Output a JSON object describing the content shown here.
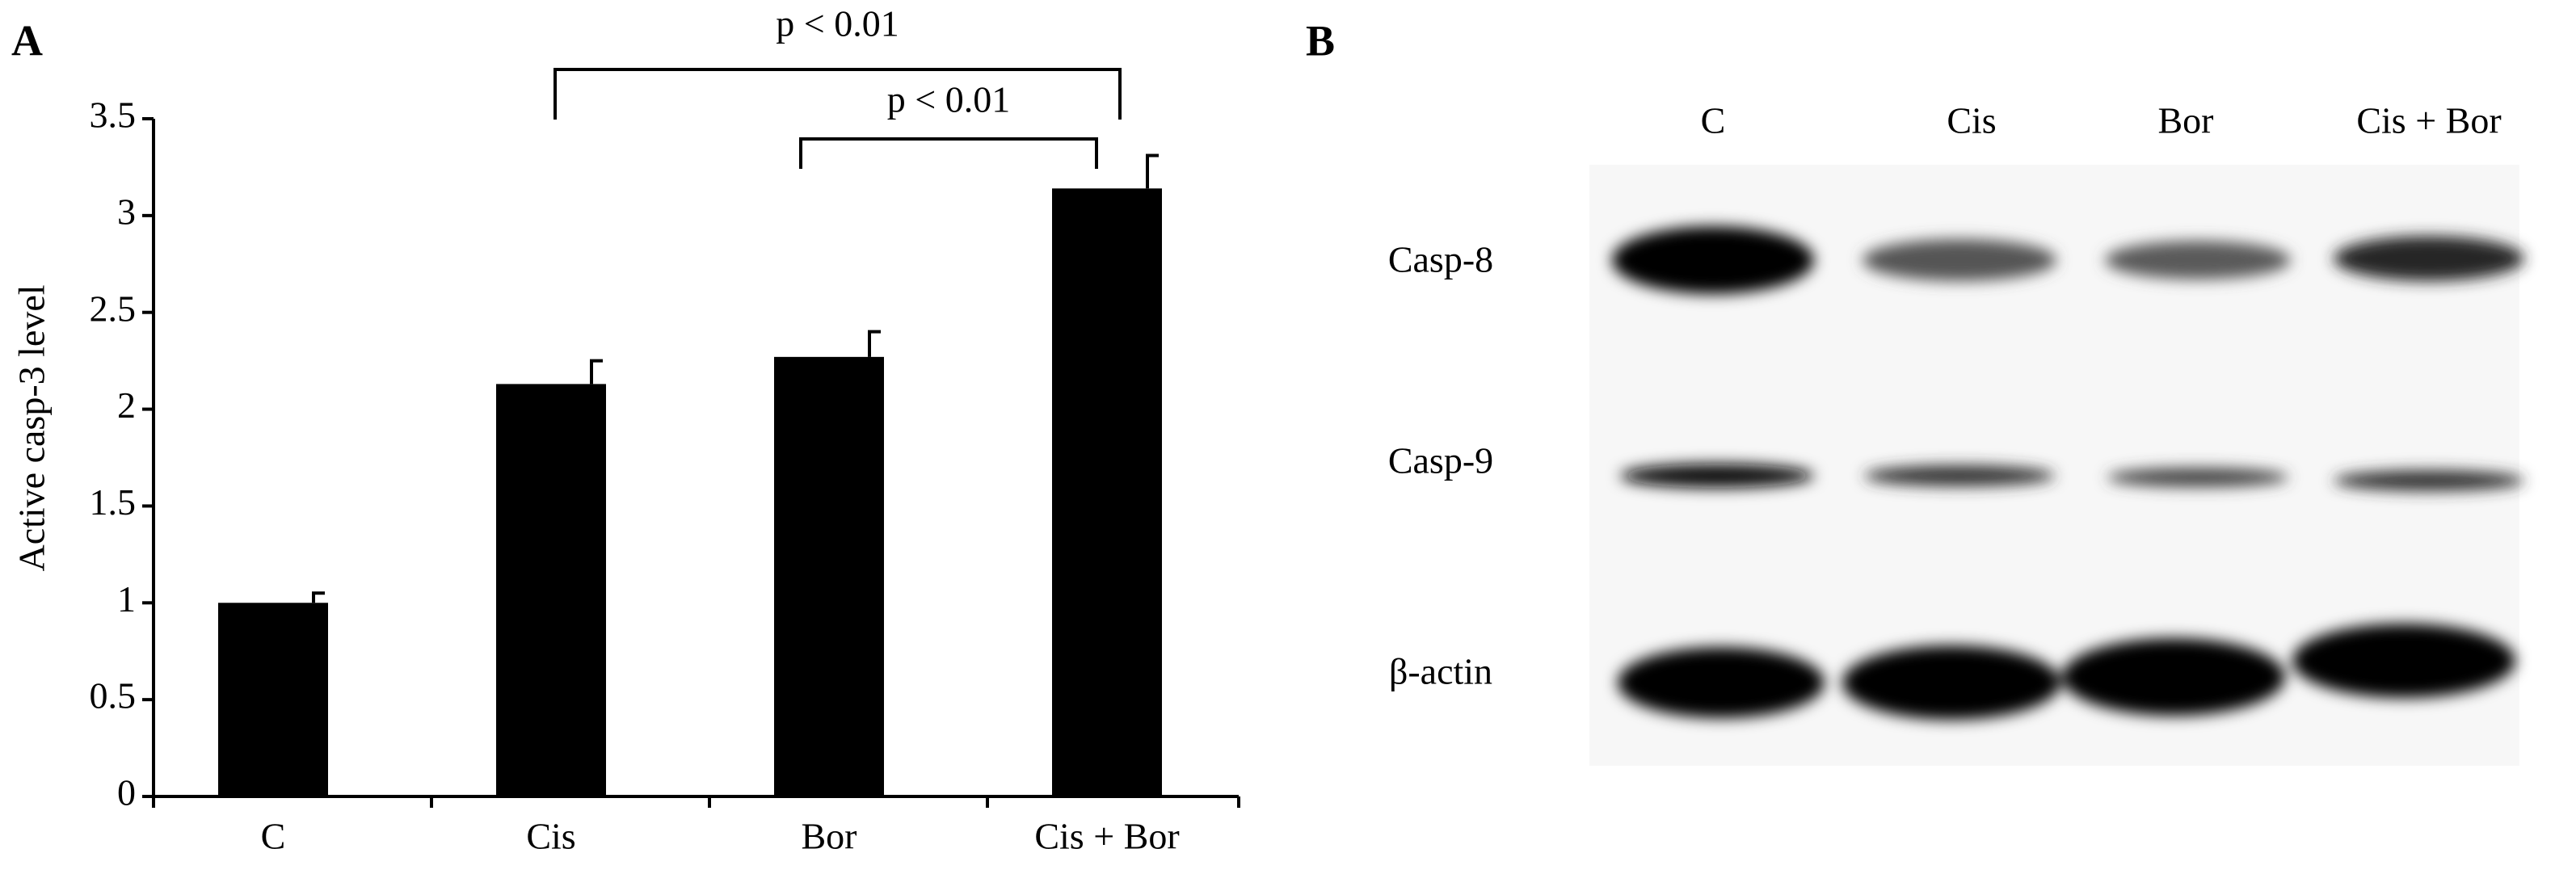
{
  "chart_data": {
    "type": "bar",
    "panel_label": "A",
    "ylabel": "Active casp-3 level",
    "categories": [
      "C",
      "Cis",
      "Bor",
      "Cis + Bor"
    ],
    "values": [
      1.0,
      2.13,
      2.27,
      3.14
    ],
    "errors": [
      0.05,
      0.12,
      0.13,
      0.17
    ],
    "color": "#000000",
    "ylim": [
      0,
      3.5
    ],
    "yticks": [
      0,
      0.5,
      1,
      1.5,
      2,
      2.5,
      3,
      3.5
    ],
    "annotations": [
      "p < 0.01",
      "p < 0.01"
    ]
  },
  "blot": {
    "panel_label": "B",
    "lanes": [
      "C",
      "Cis",
      "Bor",
      "Cis + Bor"
    ],
    "rows": [
      "Casp-8",
      "Casp-9",
      "β-actin"
    ]
  }
}
